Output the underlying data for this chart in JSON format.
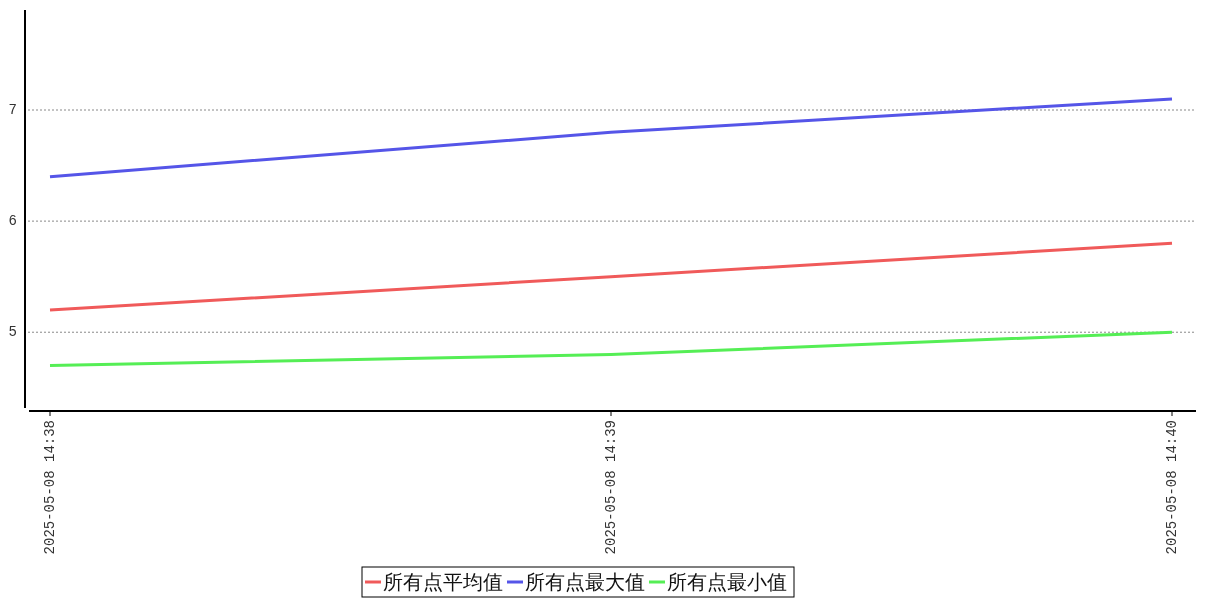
{
  "chart_data": {
    "type": "line",
    "categories": [
      "2025-05-08 14:38",
      "2025-05-08 14:39",
      "2025-05-08 14:40"
    ],
    "series": [
      {
        "name": "所有点平均值",
        "color": "#f05a5a",
        "values": [
          5.2,
          5.5,
          5.8
        ]
      },
      {
        "name": "所有点最大值",
        "color": "#5555e8",
        "values": [
          6.4,
          6.8,
          7.1
        ]
      },
      {
        "name": "所有点最小值",
        "color": "#55ee55",
        "values": [
          4.7,
          4.8,
          5.0
        ]
      }
    ],
    "ylim": [
      4.3,
      7.9
    ],
    "yticks": [
      5,
      6,
      7
    ],
    "grid": "y",
    "legend": "bottom",
    "marker": "none",
    "line_style": "solid"
  }
}
